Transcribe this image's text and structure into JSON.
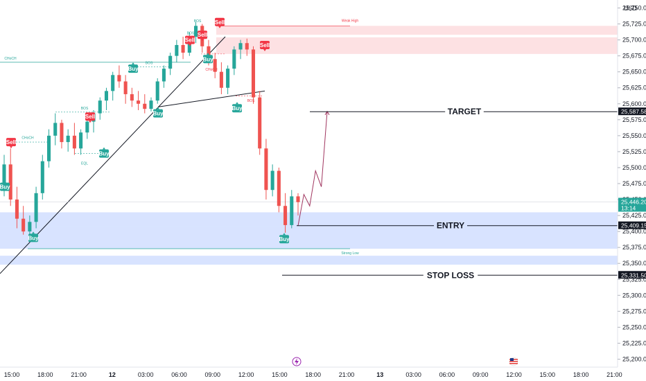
{
  "chart_data": {
    "type": "candlestick",
    "currency": "USD",
    "y_axis": {
      "min": 25187.5,
      "max": 25762.5,
      "ticks": [
        25750,
        25725,
        25700,
        25675,
        25650,
        25625,
        25600,
        25575,
        25550,
        25525,
        25500,
        25475,
        25450,
        25425,
        25400,
        25375,
        25350,
        25325,
        25300,
        25275,
        25250,
        25225,
        25200
      ],
      "tick_labels": [
        "25,750.00",
        "25,725.00",
        "25,700.00",
        "25,675.00",
        "25,650.00",
        "25,625.00",
        "25,600.00",
        "25,575.00",
        "25,550.00",
        "25,525.00",
        "25,500.00",
        "25,475.00",
        "25,450.00",
        "25,425.00",
        "25,400.00",
        "25,375.00",
        "25,350.00",
        "25,325.00",
        "25,300.00",
        "25,275.00",
        "25,250.00",
        "25,225.00",
        "25,200.00"
      ]
    },
    "x_axis": {
      "labels": [
        "15:00",
        "18:00",
        "21:00",
        "12",
        "03:00",
        "06:00",
        "09:00",
        "12:00",
        "15:00",
        "18:00",
        "21:00",
        "13",
        "03:00",
        "06:00",
        "09:00",
        "12:00",
        "15:00",
        "18:00",
        "21:00"
      ]
    },
    "price_tags": [
      {
        "label": "25,587.58",
        "value": 25587.58,
        "color": "#131722"
      },
      {
        "label": "25,446.20",
        "value": 25446.2,
        "sub": "13:14",
        "color": "#26a69a"
      },
      {
        "label": "25,409.15",
        "value": 25409.15,
        "color": "#131722"
      },
      {
        "label": "25,331.50",
        "value": 25331.5,
        "color": "#131722"
      }
    ],
    "levels": [
      {
        "name": "TARGET",
        "value": 25587.58
      },
      {
        "name": "ENTRY",
        "value": 25409.15
      },
      {
        "name": "STOP LOSS",
        "value": 25331.5
      }
    ],
    "zones": [
      {
        "kind": "supply",
        "from": 25708,
        "to": 25722,
        "label": "Weak High"
      },
      {
        "kind": "supply",
        "from": 25678,
        "to": 25704
      },
      {
        "kind": "demand",
        "from": 25408,
        "to": 25430
      },
      {
        "kind": "demand",
        "from": 25373,
        "to": 25408,
        "label": "Strong Low"
      },
      {
        "kind": "demand",
        "from": 25348,
        "to": 25362
      }
    ],
    "markers": [
      {
        "type": "Sell",
        "value": 25540
      },
      {
        "type": "Buy",
        "value": 25470
      },
      {
        "type": "Buy",
        "value": 25390
      },
      {
        "type": "Sell",
        "value": 25580
      },
      {
        "type": "Buy",
        "value": 25522
      },
      {
        "type": "Buy",
        "value": 25655
      },
      {
        "type": "Buy",
        "value": 25585
      },
      {
        "type": "Sell",
        "value": 25700
      },
      {
        "type": "Buy",
        "value": 25670
      },
      {
        "type": "Sell",
        "value": 25708
      },
      {
        "type": "Sell",
        "value": 25728
      },
      {
        "type": "Buy",
        "value": 25593
      },
      {
        "type": "Sell",
        "value": 25692
      },
      {
        "type": "Buy",
        "value": 25388
      }
    ],
    "annotations": [
      "CHoCH",
      "CHoCH",
      "BOS",
      "BOS",
      "BOS",
      "BOS",
      "EQL",
      "CHoCH",
      "BOS",
      "Weak High",
      "Strong Low"
    ],
    "candles_hourly": [
      {
        "o": 25470,
        "h": 25520,
        "l": 25455,
        "c": 25505
      },
      {
        "o": 25505,
        "h": 25530,
        "l": 25440,
        "c": 25450
      },
      {
        "o": 25450,
        "h": 25470,
        "l": 25405,
        "c": 25420
      },
      {
        "o": 25420,
        "h": 25440,
        "l": 25395,
        "c": 25400
      },
      {
        "o": 25400,
        "h": 25425,
        "l": 25385,
        "c": 25415
      },
      {
        "o": 25415,
        "h": 25470,
        "l": 25405,
        "c": 25460
      },
      {
        "o": 25460,
        "h": 25520,
        "l": 25450,
        "c": 25510
      },
      {
        "o": 25510,
        "h": 25560,
        "l": 25500,
        "c": 25550
      },
      {
        "o": 25550,
        "h": 25585,
        "l": 25535,
        "c": 25570
      },
      {
        "o": 25570,
        "h": 25575,
        "l": 25530,
        "c": 25540
      },
      {
        "o": 25540,
        "h": 25560,
        "l": 25525,
        "c": 25550
      },
      {
        "o": 25550,
        "h": 25570,
        "l": 25520,
        "c": 25530
      },
      {
        "o": 25530,
        "h": 25560,
        "l": 25520,
        "c": 25555
      },
      {
        "o": 25555,
        "h": 25580,
        "l": 25545,
        "c": 25572
      },
      {
        "o": 25572,
        "h": 25590,
        "l": 25555,
        "c": 25585
      },
      {
        "o": 25585,
        "h": 25610,
        "l": 25575,
        "c": 25605
      },
      {
        "o": 25605,
        "h": 25625,
        "l": 25590,
        "c": 25620
      },
      {
        "o": 25620,
        "h": 25650,
        "l": 25605,
        "c": 25645
      },
      {
        "o": 25645,
        "h": 25660,
        "l": 25625,
        "c": 25635
      },
      {
        "o": 25635,
        "h": 25645,
        "l": 25600,
        "c": 25615
      },
      {
        "o": 25615,
        "h": 25625,
        "l": 25595,
        "c": 25605
      },
      {
        "o": 25605,
        "h": 25620,
        "l": 25590,
        "c": 25600
      },
      {
        "o": 25600,
        "h": 25615,
        "l": 25585,
        "c": 25592
      },
      {
        "o": 25592,
        "h": 25610,
        "l": 25588,
        "c": 25605
      },
      {
        "o": 25605,
        "h": 25640,
        "l": 25600,
        "c": 25635
      },
      {
        "o": 25635,
        "h": 25660,
        "l": 25625,
        "c": 25655
      },
      {
        "o": 25655,
        "h": 25680,
        "l": 25645,
        "c": 25675
      },
      {
        "o": 25675,
        "h": 25700,
        "l": 25665,
        "c": 25692
      },
      {
        "o": 25692,
        "h": 25705,
        "l": 25670,
        "c": 25680
      },
      {
        "o": 25680,
        "h": 25712,
        "l": 25675,
        "c": 25705
      },
      {
        "o": 25705,
        "h": 25728,
        "l": 25695,
        "c": 25722
      },
      {
        "o": 25722,
        "h": 25725,
        "l": 25680,
        "c": 25690
      },
      {
        "o": 25690,
        "h": 25700,
        "l": 25660,
        "c": 25670
      },
      {
        "o": 25670,
        "h": 25680,
        "l": 25640,
        "c": 25650
      },
      {
        "o": 25650,
        "h": 25665,
        "l": 25615,
        "c": 25625
      },
      {
        "o": 25625,
        "h": 25660,
        "l": 25615,
        "c": 25655
      },
      {
        "o": 25655,
        "h": 25690,
        "l": 25645,
        "c": 25685
      },
      {
        "o": 25685,
        "h": 25700,
        "l": 25670,
        "c": 25695
      },
      {
        "o": 25695,
        "h": 25702,
        "l": 25675,
        "c": 25685
      },
      {
        "o": 25685,
        "h": 25690,
        "l": 25600,
        "c": 25610
      },
      {
        "o": 25610,
        "h": 25620,
        "l": 25520,
        "c": 25530
      },
      {
        "o": 25530,
        "h": 25545,
        "l": 25450,
        "c": 25465
      },
      {
        "o": 25465,
        "h": 25505,
        "l": 25455,
        "c": 25495
      },
      {
        "o": 25495,
        "h": 25500,
        "l": 25430,
        "c": 25440
      },
      {
        "o": 25440,
        "h": 25460,
        "l": 25398,
        "c": 25410
      },
      {
        "o": 25410,
        "h": 25465,
        "l": 25405,
        "c": 25455
      },
      {
        "o": 25455,
        "h": 25460,
        "l": 25425,
        "c": 25446
      }
    ],
    "projection": [
      {
        "step": 0,
        "value": 25409
      },
      {
        "step": 1,
        "value": 25458
      },
      {
        "step": 2,
        "value": 25440
      },
      {
        "step": 3,
        "value": 25495
      },
      {
        "step": 4,
        "value": 25470
      },
      {
        "step": 5,
        "value": 25588
      }
    ]
  }
}
